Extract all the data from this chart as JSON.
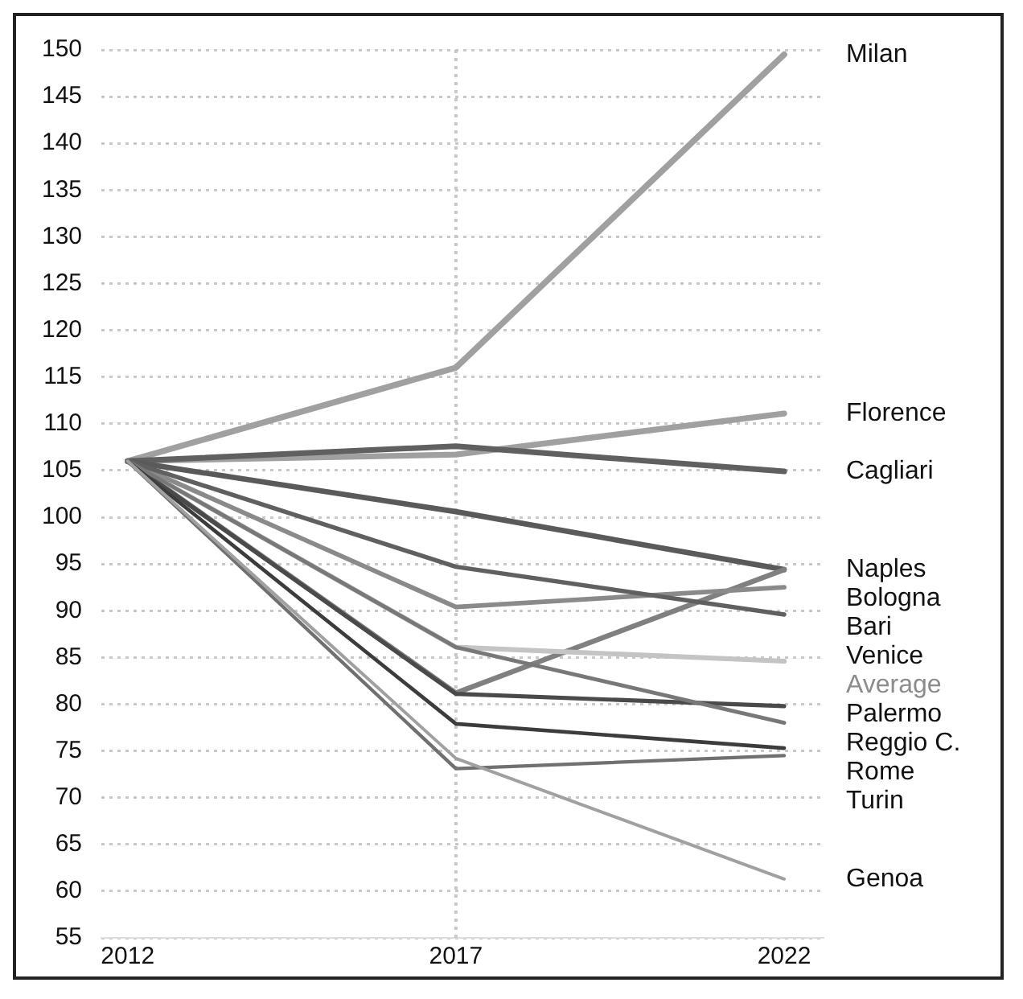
{
  "chart_data": {
    "type": "line",
    "x": [
      2012,
      2017,
      2022
    ],
    "xlim": [
      2011.6,
      2022.6
    ],
    "xticks": [
      2012,
      2017,
      2022
    ],
    "ylim": [
      55,
      150
    ],
    "yticks": [
      55,
      60,
      65,
      70,
      75,
      80,
      85,
      90,
      95,
      100,
      105,
      110,
      115,
      120,
      125,
      130,
      135,
      140,
      145,
      150
    ],
    "grid": "y",
    "legend": false,
    "marker": "none",
    "line_style": "solid",
    "ref_lines": [
      {
        "axis": "x",
        "value": 2017,
        "color": "#c8c8c8",
        "line_style": "dotted"
      }
    ],
    "series": [
      {
        "name": "Milan",
        "color": "#a0a0a0",
        "values": [
          106,
          116,
          149.5
        ]
      },
      {
        "name": "Florence",
        "color": "#a0a0a0",
        "values": [
          106,
          106.7,
          111.1
        ]
      },
      {
        "name": "Cagliari",
        "color": "#606060",
        "values": [
          106,
          107.6,
          104.9
        ]
      },
      {
        "name": "Naples",
        "color": "#5a5a5a",
        "values": [
          106,
          100.6,
          94.4
        ]
      },
      {
        "name": "Bologna",
        "color": "#808080",
        "values": [
          106,
          81.2,
          94.4
        ]
      },
      {
        "name": "Average",
        "color": "#c4c4c4",
        "values": [
          106,
          86.1,
          84.6
        ]
      },
      {
        "name": "Bari",
        "color": "#8a8a8a",
        "values": [
          106,
          90.4,
          92.5
        ]
      },
      {
        "name": "Venice",
        "color": "#606060",
        "values": [
          106,
          94.7,
          89.6
        ]
      },
      {
        "name": "Palermo",
        "color": "#4a4a4a",
        "values": [
          106,
          81.1,
          79.8
        ]
      },
      {
        "name": "Reggio C.",
        "color": "#787878",
        "values": [
          106,
          86.1,
          78.0
        ]
      },
      {
        "name": "Rome",
        "color": "#3c3c3c",
        "values": [
          106,
          77.9,
          75.3
        ]
      },
      {
        "name": "Turin",
        "color": "#707070",
        "values": [
          106,
          73.1,
          74.5
        ]
      },
      {
        "name": "Genoa",
        "color": "#a0a0a0",
        "values": [
          106,
          74.2,
          61.3
        ]
      }
    ]
  }
}
